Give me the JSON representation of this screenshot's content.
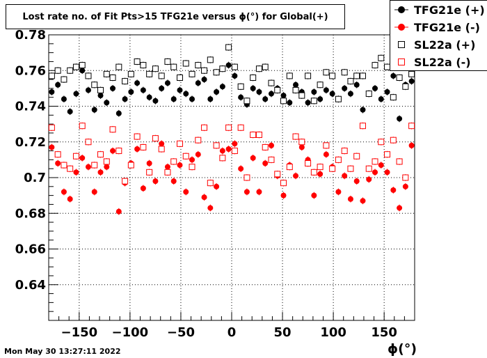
{
  "title": "Lost rate no. of Fit Pts>15 TFG21e versus ϕ(°) for Global(+)",
  "timestamp": "Mon May 30 13:27:11 2022",
  "x_axis_label": "ϕ(°)",
  "chart_data": {
    "type": "scatter",
    "title": "Lost rate no. of Fit Pts>15 TFG21e versus ϕ(°) for Global(+)",
    "xlabel": "ϕ(°)",
    "ylabel": "",
    "xlim": [
      -180,
      180
    ],
    "ylim": [
      0.62,
      0.78
    ],
    "x_ticks": [
      -150,
      -100,
      -50,
      0,
      50,
      100,
      150
    ],
    "x_tick_labels": [
      "−150",
      "−100",
      "−50",
      "0",
      "50",
      "100",
      "150"
    ],
    "y_ticks": [
      0.64,
      0.66,
      0.68,
      0.7,
      0.72,
      0.74,
      0.76,
      0.78
    ],
    "y_tick_labels": [
      "0.64",
      "0.66",
      "0.68",
      "0.7",
      "0.72",
      "0.74",
      "0.76",
      "0.78"
    ],
    "grid": true,
    "legend_position": "top-right",
    "series": [
      {
        "name": "TFG21e (+)",
        "marker": "filled-circle",
        "color": "#000000",
        "x": [
          -177,
          -171,
          -165,
          -159,
          -153,
          -147,
          -141,
          -135,
          -129,
          -123,
          -117,
          -111,
          -105,
          -99,
          -93,
          -87,
          -81,
          -75,
          -69,
          -63,
          -57,
          -51,
          -45,
          -39,
          -33,
          -27,
          -21,
          -15,
          -9,
          -3,
          3,
          9,
          15,
          21,
          27,
          33,
          39,
          45,
          51,
          57,
          63,
          69,
          75,
          81,
          87,
          93,
          99,
          105,
          111,
          117,
          123,
          129,
          135,
          141,
          147,
          153,
          159,
          165,
          171,
          177
        ],
        "y": [
          0.748,
          0.752,
          0.744,
          0.737,
          0.747,
          0.76,
          0.749,
          0.738,
          0.746,
          0.742,
          0.75,
          0.736,
          0.744,
          0.748,
          0.753,
          0.749,
          0.745,
          0.743,
          0.75,
          0.753,
          0.744,
          0.749,
          0.747,
          0.744,
          0.753,
          0.755,
          0.744,
          0.748,
          0.751,
          0.763,
          0.757,
          0.745,
          0.741,
          0.75,
          0.748,
          0.744,
          0.747,
          0.75,
          0.746,
          0.742,
          0.752,
          0.748,
          0.742,
          0.748,
          0.744,
          0.749,
          0.747,
          0.744,
          0.75,
          0.747,
          0.752,
          0.738,
          0.747,
          0.75,
          0.744,
          0.748,
          0.757,
          0.733,
          0.752,
          0.754
        ]
      },
      {
        "name": "TFG21e (-)",
        "marker": "filled-circle",
        "color": "#ff0000",
        "x": [
          -177,
          -171,
          -165,
          -159,
          -153,
          -147,
          -141,
          -135,
          -129,
          -123,
          -117,
          -111,
          -105,
          -99,
          -93,
          -87,
          -81,
          -75,
          -69,
          -63,
          -57,
          -51,
          -45,
          -39,
          -33,
          -27,
          -21,
          -15,
          -9,
          -3,
          3,
          9,
          15,
          21,
          27,
          33,
          39,
          45,
          51,
          57,
          63,
          69,
          75,
          81,
          87,
          93,
          99,
          105,
          111,
          117,
          123,
          129,
          135,
          141,
          147,
          153,
          159,
          165,
          171,
          177
        ],
        "y": [
          0.717,
          0.708,
          0.692,
          0.688,
          0.703,
          0.711,
          0.706,
          0.692,
          0.703,
          0.706,
          0.715,
          0.681,
          0.697,
          0.708,
          0.716,
          0.694,
          0.708,
          0.698,
          0.719,
          0.706,
          0.698,
          0.707,
          0.692,
          0.71,
          0.713,
          0.689,
          0.683,
          0.695,
          0.715,
          0.716,
          0.719,
          0.705,
          0.692,
          0.711,
          0.692,
          0.708,
          0.718,
          0.701,
          0.69,
          0.707,
          0.701,
          0.717,
          0.71,
          0.69,
          0.702,
          0.713,
          0.706,
          0.692,
          0.701,
          0.688,
          0.698,
          0.687,
          0.699,
          0.703,
          0.707,
          0.703,
          0.693,
          0.683,
          0.695,
          0.718
        ]
      },
      {
        "name": "SL22a (+)",
        "marker": "open-square",
        "color": "#000000",
        "x": [
          -177,
          -171,
          -165,
          -159,
          -153,
          -147,
          -141,
          -135,
          -129,
          -123,
          -117,
          -111,
          -105,
          -99,
          -93,
          -87,
          -81,
          -75,
          -69,
          -63,
          -57,
          -51,
          -45,
          -39,
          -33,
          -27,
          -21,
          -15,
          -9,
          -3,
          3,
          9,
          15,
          21,
          27,
          33,
          39,
          45,
          51,
          57,
          63,
          69,
          75,
          81,
          87,
          93,
          99,
          105,
          111,
          117,
          123,
          129,
          135,
          141,
          147,
          153,
          159,
          165,
          171,
          177
        ],
        "y": [
          0.757,
          0.76,
          0.755,
          0.76,
          0.762,
          0.763,
          0.757,
          0.752,
          0.749,
          0.758,
          0.756,
          0.762,
          0.754,
          0.758,
          0.765,
          0.763,
          0.758,
          0.761,
          0.757,
          0.765,
          0.762,
          0.756,
          0.764,
          0.758,
          0.763,
          0.76,
          0.766,
          0.759,
          0.761,
          0.773,
          0.762,
          0.751,
          0.743,
          0.756,
          0.761,
          0.762,
          0.753,
          0.749,
          0.743,
          0.757,
          0.749,
          0.746,
          0.757,
          0.743,
          0.752,
          0.759,
          0.757,
          0.744,
          0.759,
          0.754,
          0.757,
          0.757,
          0.747,
          0.763,
          0.767,
          0.762,
          0.745,
          0.756,
          0.751,
          0.758
        ]
      },
      {
        "name": "SL22a (-)",
        "marker": "open-square",
        "color": "#ff0000",
        "x": [
          -177,
          -171,
          -165,
          -159,
          -153,
          -147,
          -141,
          -135,
          -129,
          -123,
          -117,
          -111,
          -105,
          -99,
          -93,
          -87,
          -81,
          -75,
          -69,
          -63,
          -57,
          -51,
          -45,
          -39,
          -33,
          -27,
          -21,
          -15,
          -9,
          -3,
          3,
          9,
          15,
          21,
          27,
          33,
          39,
          45,
          51,
          57,
          63,
          69,
          75,
          81,
          87,
          93,
          99,
          105,
          111,
          117,
          123,
          129,
          135,
          141,
          147,
          153,
          159,
          165,
          171,
          177
        ],
        "y": [
          0.728,
          0.713,
          0.707,
          0.705,
          0.712,
          0.729,
          0.72,
          0.707,
          0.713,
          0.709,
          0.727,
          0.715,
          0.698,
          0.707,
          0.723,
          0.717,
          0.703,
          0.722,
          0.716,
          0.703,
          0.709,
          0.719,
          0.712,
          0.706,
          0.721,
          0.728,
          0.697,
          0.718,
          0.711,
          0.728,
          0.715,
          0.728,
          0.7,
          0.724,
          0.724,
          0.717,
          0.71,
          0.702,
          0.697,
          0.706,
          0.723,
          0.72,
          0.708,
          0.703,
          0.706,
          0.718,
          0.705,
          0.71,
          0.715,
          0.705,
          0.712,
          0.729,
          0.705,
          0.709,
          0.72,
          0.713,
          0.721,
          0.709,
          0.7,
          0.729
        ]
      }
    ]
  }
}
